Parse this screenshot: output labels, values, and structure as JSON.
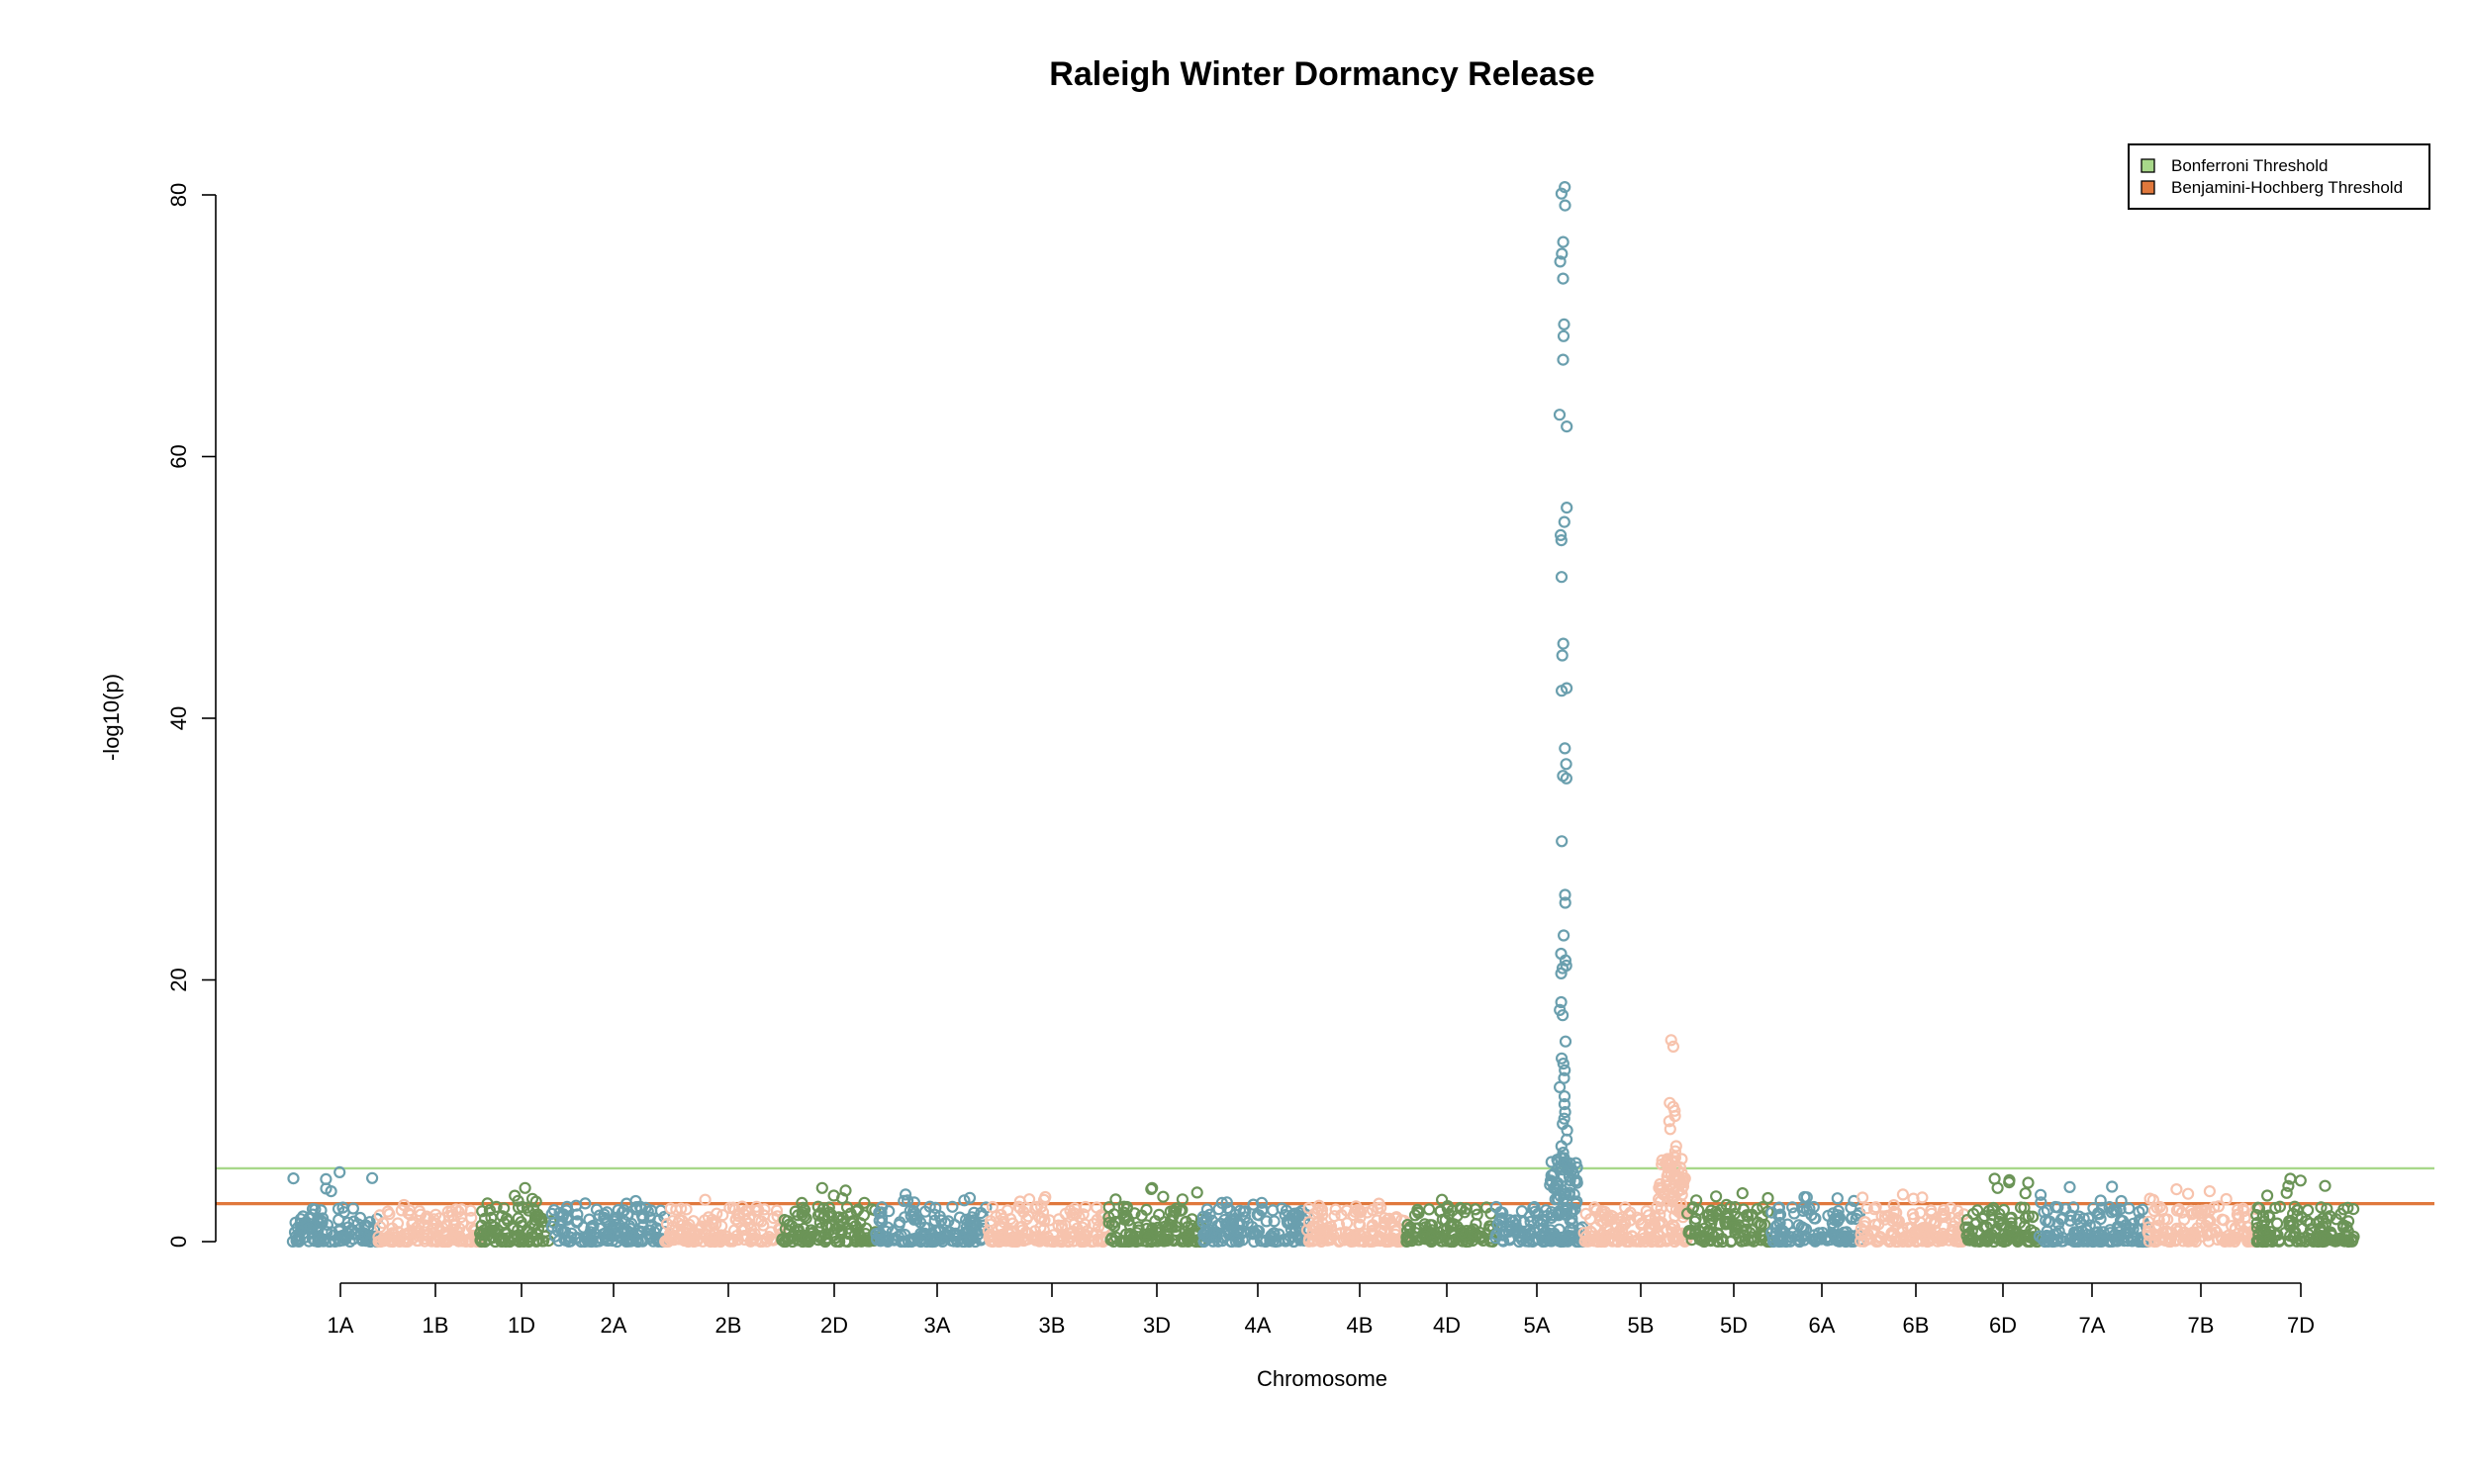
{
  "chart_data": {
    "type": "scatter",
    "title": "Raleigh Winter Dormancy Release",
    "xlabel": "Chromosome",
    "ylabel": "-log10(p)",
    "ylim": [
      0,
      80
    ],
    "yticks": [
      0,
      20,
      40,
      60,
      80
    ],
    "categories": [
      "1A",
      "1B",
      "1D",
      "2A",
      "2B",
      "2D",
      "3A",
      "3B",
      "3D",
      "4A",
      "4B",
      "4D",
      "5A",
      "5B",
      "5D",
      "6A",
      "6B",
      "6D",
      "7A",
      "7B",
      "7D"
    ],
    "series_colors": [
      "#6a9fae",
      "#f7c3ad",
      "#6b9457"
    ],
    "color_cycle_order": "blue, peach, green",
    "thresholds": [
      {
        "name": "Bonferroni Threshold",
        "value": 5.6,
        "color": "#a8d88a"
      },
      {
        "name": "Benjamini-Hochberg Threshold",
        "value": 2.9,
        "color": "#e0783c"
      }
    ],
    "legend_position": "top-right",
    "peaks": [
      {
        "chromosome": "5A",
        "max_log10p": 80.6,
        "values": [
          80.6,
          80.1,
          79.2,
          76.4,
          75.5,
          74.9,
          73.6,
          70.1,
          69.2,
          67.4,
          63.2,
          62.3,
          56.1,
          55.0,
          54.0,
          53.6,
          50.8,
          45.7,
          44.8,
          42.3,
          42.1,
          37.7,
          36.5,
          35.6,
          35.4,
          30.6,
          26.5,
          25.9,
          23.4,
          22.0,
          21.5,
          21.1,
          20.9,
          20.5,
          18.3,
          17.7,
          17.3,
          15.3,
          14.0,
          13.6,
          13.1,
          12.5,
          11.8,
          11.1,
          10.5,
          9.9,
          9.4,
          9.0,
          8.5,
          7.8,
          7.3,
          6.8,
          6.4,
          6.0
        ]
      },
      {
        "chromosome": "5B",
        "max_log10p": 15.4,
        "values": [
          15.4,
          14.9,
          10.6,
          10.3,
          10.0,
          9.6,
          9.2,
          8.6,
          7.3,
          6.9,
          6.5,
          6.1,
          5.6,
          5.2,
          4.8,
          4.4,
          4.0
        ]
      }
    ],
    "chromosome_max_log10p": {
      "1A": 5.3,
      "1B": 2.8,
      "1D": 4.1,
      "2A": 3.1,
      "2B": 3.2,
      "2D": 4.1,
      "3A": 3.6,
      "3B": 3.4,
      "3D": 4.1,
      "4A": 3.0,
      "4B": 2.9,
      "4D": 3.2,
      "5A": 80.6,
      "5B": 15.4,
      "5D": 3.7,
      "6A": 3.4,
      "6B": 3.6,
      "6D": 4.8,
      "7A": 4.2,
      "7B": 4.0,
      "7D": 4.8
    }
  }
}
